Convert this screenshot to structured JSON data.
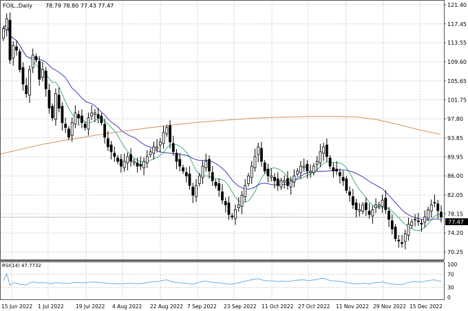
{
  "header": {
    "symbol": "FOIL.,Daily",
    "ohlc": "78.79 78.80 77.43 77.47"
  },
  "rsi_label": "RSI(14) 47.7732",
  "current_price_label": "77.47",
  "chart_data": {
    "type": "candlestick",
    "timeframe": "Daily",
    "y_ticks": [
      "121.40",
      "117.45",
      "113.55",
      "109.60",
      "105.65",
      "101.75",
      "97.80",
      "93.85",
      "89.95",
      "86.00",
      "82.05",
      "78.15",
      "74.20",
      "70.25"
    ],
    "ylim": [
      70.25,
      121.4
    ],
    "x_ticks": [
      "15 Jun 2022",
      "1 Jul 2022",
      "19 Jul 2022",
      "4 Aug 2022",
      "22 Aug 2022",
      "7 Sep 2022",
      "23 Sep 2022",
      "11 Oct 2022",
      "27 Oct 2022",
      "11 Nov 2022",
      "29 Nov 2022",
      "15 Dec 2022"
    ],
    "close": [
      116.5,
      118.5,
      110,
      113,
      112,
      108,
      105,
      103,
      108,
      111,
      110,
      106,
      108,
      104,
      100,
      98,
      103,
      100,
      97,
      96,
      94,
      97,
      99,
      98,
      97,
      96,
      98,
      99,
      99,
      98,
      97,
      94,
      92,
      91,
      90,
      89,
      88,
      89,
      90,
      89,
      89,
      88,
      88,
      89,
      90,
      91,
      92,
      92,
      93,
      95,
      96,
      93,
      91,
      89,
      88,
      87,
      86,
      84,
      82,
      84,
      86,
      88,
      89,
      87,
      85,
      84,
      83,
      81,
      80,
      78,
      77.5,
      79,
      80,
      82,
      84,
      86,
      88,
      90,
      92,
      89,
      87,
      86,
      86,
      85,
      84,
      85,
      85,
      84,
      85,
      86,
      87,
      88,
      88,
      87,
      87,
      88,
      89,
      91,
      92,
      90,
      88,
      87,
      87,
      86,
      85,
      83,
      82,
      80,
      79,
      79,
      80,
      79,
      78,
      79,
      80,
      80,
      81,
      79,
      77,
      75,
      73,
      72.5,
      72,
      74,
      76,
      76.5,
      77,
      76.5,
      76,
      77.5,
      79,
      80,
      80.5,
      78.8,
      77.47
    ],
    "ma_fast_color": "#3cb371",
    "ma_mid_color": "#3b3bb5",
    "ma_slow_color": "#d2915a",
    "ma_slow": [
      90.5,
      91.5,
      92.5,
      93.3,
      94,
      94.7,
      95.3,
      95.9,
      96.4,
      96.9,
      97.3,
      97.6,
      97.9,
      98.1,
      98.2,
      98.3,
      98.3,
      98.2,
      97.6,
      96.6,
      95.5,
      94.6
    ],
    "rsi_period": 14,
    "rsi_levels": [
      100,
      70,
      30,
      0
    ],
    "rsi_color": "#6aaee0"
  }
}
